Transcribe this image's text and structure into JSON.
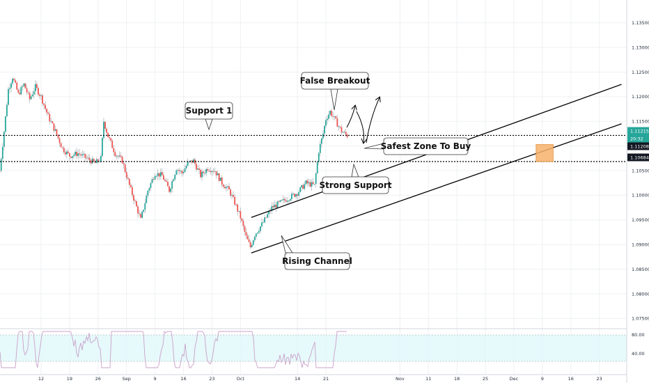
{
  "chart_data": {
    "type": "candlestick",
    "title": "",
    "xlabel": "",
    "ylabel": "",
    "ylim": [
      1.0735,
      1.1375
    ],
    "y_ticks": [
      "1.13500",
      "1.13000",
      "1.12500",
      "1.12000",
      "1.11500",
      "1.11000",
      "1.10500",
      "1.10000",
      "1.09500",
      "1.09000",
      "1.08500",
      "1.08000",
      "1.07500"
    ],
    "x_ticks": [
      "12",
      "19",
      "26",
      "Sep",
      "9",
      "16",
      "23",
      "Oct",
      "14",
      "21",
      "Nov",
      "11",
      "18",
      "25",
      "Dec",
      "9",
      "16",
      "23"
    ],
    "price_tags": [
      {
        "label": "1.11215",
        "value": 1.11215,
        "color": "#26a69a"
      },
      {
        "label": "20:32",
        "value": 1.1115,
        "color": "#26a69a"
      },
      {
        "label": "1.11208",
        "value": 1.1109,
        "color": "#131722"
      },
      {
        "label": "1.10684",
        "value": 1.10684,
        "color": "#131722"
      }
    ],
    "horizontal_levels": [
      1.11215,
      1.10684
    ],
    "channel": {
      "upper": [
        [
          13,
          1.0955
        ],
        [
          26,
          1.1225
        ]
      ],
      "lower": [
        [
          13,
          1.0883
        ],
        [
          26,
          1.1145
        ]
      ]
    },
    "buy_zone": {
      "from": 23.0,
      "to": 23.6,
      "low": 1.10684,
      "high": 1.1103,
      "color": "#f6b26b"
    },
    "annotations": [
      {
        "text": "False Breakout"
      },
      {
        "text": "Support 1"
      },
      {
        "text": "Safest Zone To Buy"
      },
      {
        "text": "Strong Support"
      },
      {
        "text": "Rising Channel"
      }
    ],
    "rsi": {
      "levels": [
        "80.00",
        "40.00"
      ],
      "band": [
        30,
        70
      ]
    }
  }
}
